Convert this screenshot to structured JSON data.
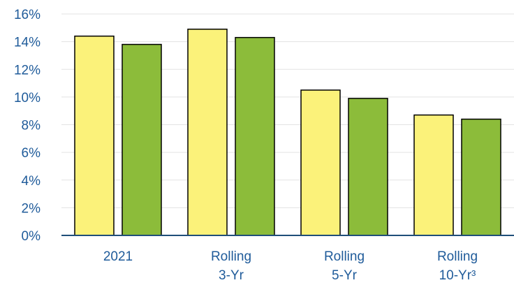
{
  "chart_data": {
    "type": "bar",
    "categories": [
      [
        "2021"
      ],
      [
        "Rolling",
        "3-Yr"
      ],
      [
        "Rolling",
        "5-Yr"
      ],
      [
        "Rolling",
        "10-Yr³"
      ]
    ],
    "series": [
      {
        "values": [
          14.4,
          14.9,
          10.5,
          8.7
        ]
      },
      {
        "values": [
          13.8,
          14.3,
          9.9,
          8.4
        ]
      }
    ],
    "ylim": [
      0,
      16
    ],
    "yticks": [
      "0%",
      "2%",
      "4%",
      "6%",
      "8%",
      "10%",
      "12%",
      "14%",
      "16%"
    ],
    "grid": true,
    "legend": "none"
  },
  "colors": {
    "series": [
      "#fbf27a",
      "#8cbc3a"
    ],
    "bar_outline": "#000000",
    "grid": "#e3e3e3",
    "axis": "#1f4e79",
    "text": "#1f5b9a"
  }
}
